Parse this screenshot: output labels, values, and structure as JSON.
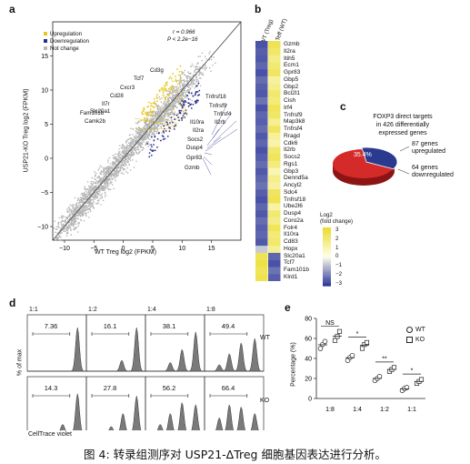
{
  "panels": {
    "a": {
      "letter": "a",
      "legend": [
        {
          "label": "Upregulation",
          "color": "#e8c81e"
        },
        {
          "label": "Downregulation",
          "color": "#2a2f8f"
        },
        {
          "label": "Not change",
          "color": "#b8b8b8"
        }
      ],
      "stats": {
        "r": "r = 0.966",
        "p": "P < 2.2e−16"
      },
      "gene_labels_up": [
        "Cd3g",
        "Tcf7",
        "Cxcr3",
        "Cd28",
        "Il7r",
        "Slc20a1",
        "Fam101b",
        "Camk2b"
      ],
      "gene_labels_down": [
        "Tnfrsf18",
        "Tnfrsf9",
        "Tnfrsf4",
        "Il2rb",
        "Il10ra",
        "Il2ra",
        "Socs2",
        "Dusp4",
        "Gpr83",
        "Gzmb"
      ]
    },
    "b": {
      "letter": "b",
      "col_headers": [
        "KO / WT (Treg)",
        "Treg / Teff (WT)"
      ],
      "genes": [
        "Gzmb",
        "Il2ra",
        "Itih5",
        "Ecm1",
        "Gpr83",
        "Gbp5",
        "Gbp2",
        "Bcl2l1",
        "Cish",
        "Irf4",
        "Tnfrsf9",
        "Map3k8",
        "Tnfrsf4",
        "Rragd",
        "Cdk6",
        "Il2rb",
        "Socs2",
        "Rgs1",
        "Gbp3",
        "Dennd5a",
        "Ancyl2",
        "Sdc4",
        "Tnfrsf18",
        "Ube2l6",
        "Dusp4",
        "Coro2a",
        "Folr4",
        "Il10ra",
        "Cd83",
        "Hopx",
        "Slc20a1",
        "Tcf7",
        "Fam101b",
        "Klrd1"
      ],
      "col1": [
        -2.6,
        -2.4,
        -2.5,
        -2.3,
        -2.6,
        -2.2,
        -2.4,
        -2.5,
        -2.1,
        -2.6,
        -2.3,
        -2.4,
        -2.2,
        -2.5,
        -2.3,
        -2.6,
        -2.4,
        -2.2,
        -2.5,
        -2.3,
        -2.1,
        -2.4,
        -2.6,
        -2.3,
        -2.5,
        -2.2,
        -2.4,
        -2.3,
        -2.5,
        -0.8,
        2.4,
        2.6,
        2.3,
        2.5
      ],
      "col2": [
        2.4,
        2.1,
        1.6,
        1.9,
        2.2,
        1.2,
        1.5,
        2.0,
        1.8,
        2.3,
        2.1,
        1.4,
        2.2,
        1.3,
        1.0,
        2.0,
        2.3,
        1.7,
        0.9,
        1.5,
        1.2,
        2.2,
        2.4,
        1.1,
        1.9,
        1.6,
        2.3,
        1.8,
        2.0,
        1.4,
        -2.3,
        -2.6,
        -2.1,
        -2.4
      ],
      "legend_title": "Log2\n(fold change)",
      "legend_ticks": [
        "3",
        "2",
        "1",
        "0",
        "−1",
        "−2",
        "−3"
      ]
    },
    "c": {
      "letter": "c",
      "title": "FOXP3 direct targets\nin 426 differentially\nexpressed genes",
      "slice_label": "35.4%",
      "note_up": "87 genes\nupregulated",
      "note_down": "64 genes\ndownregulated"
    },
    "d": {
      "letter": "d",
      "ratios": [
        "1:1",
        "1:2",
        "1:4",
        "1:8"
      ],
      "wt_values": [
        "7.36",
        "16.1",
        "38.1",
        "49.4"
      ],
      "ko_values": [
        "14.3",
        "27.8",
        "56.2",
        "66.4"
      ],
      "row_labels": [
        "WT",
        "KO"
      ],
      "ylabel": "% of max",
      "xlabel": "CellTrace violet"
    },
    "e": {
      "letter": "e",
      "ylabel": "Percentage (%)",
      "categories": [
        "1:8",
        "1:4",
        "1:2",
        "1:1"
      ],
      "ylim": [
        0,
        80
      ],
      "yticks": [
        "0",
        "20",
        "40",
        "60",
        "80"
      ],
      "wt": [
        [
          50,
          54,
          57
        ],
        [
          38,
          41,
          43
        ],
        [
          18,
          20,
          22
        ],
        [
          8,
          10,
          11
        ]
      ],
      "ko": [
        [
          58,
          62,
          67
        ],
        [
          50,
          54,
          56
        ],
        [
          27,
          29,
          31
        ],
        [
          15,
          17,
          19
        ]
      ],
      "sig": [
        "NS",
        "*",
        "**",
        "*"
      ],
      "legend": [
        "WT",
        "KO"
      ]
    }
  },
  "chart_data": {
    "type": "scatter",
    "xlabel": "WT Treg log2 (FPKM)",
    "ylabel": "USP21-KO Treg log2 (FPKM)",
    "xlim": [
      -12,
      20
    ],
    "ylim": [
      -12,
      20
    ],
    "xticks": [
      "−10",
      "−5",
      "0",
      "5",
      "10",
      "15"
    ],
    "yticks": [
      "−10",
      "−5",
      "0",
      "5",
      "10",
      "15"
    ]
  },
  "caption": "图 4: 转录组测序对 USP21-ΔTreg 细胞基因表达进行分析。"
}
